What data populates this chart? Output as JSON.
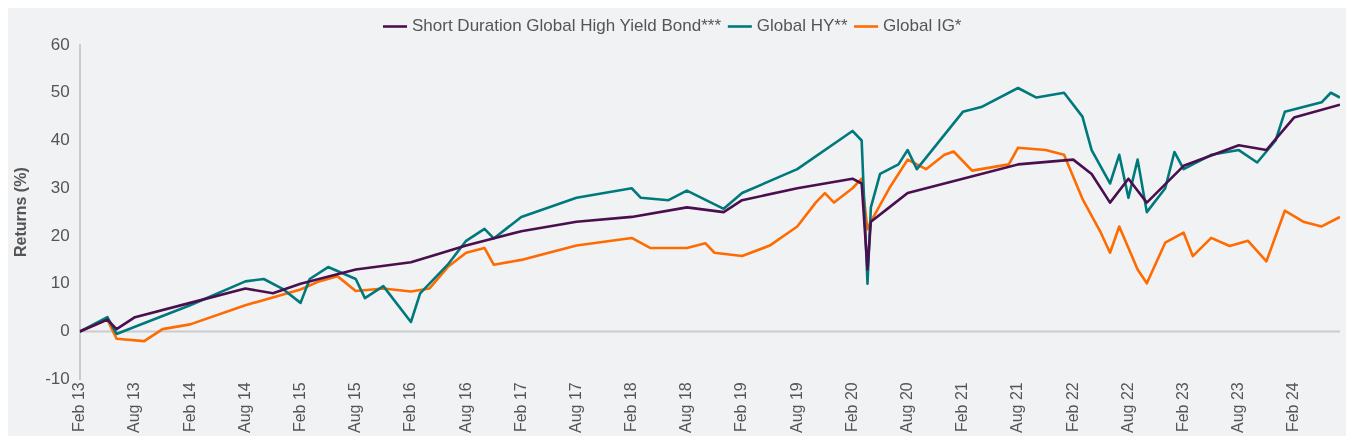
{
  "chart_data": {
    "type": "line",
    "ylabel": "Returns (%)",
    "ylim": [
      -10,
      60
    ],
    "yticks": [
      -10,
      0,
      10,
      20,
      30,
      40,
      50,
      60
    ],
    "xlim": [
      "2013-02",
      "2024-07"
    ],
    "xticks": [
      {
        "value": "2013-02",
        "label": "Feb 13"
      },
      {
        "value": "2013-08",
        "label": "Aug 13"
      },
      {
        "value": "2014-02",
        "label": "Feb 14"
      },
      {
        "value": "2014-08",
        "label": "Aug 14"
      },
      {
        "value": "2015-02",
        "label": "Feb 15"
      },
      {
        "value": "2015-08",
        "label": "Aug 15"
      },
      {
        "value": "2016-02",
        "label": "Feb 16"
      },
      {
        "value": "2016-08",
        "label": "Aug 16"
      },
      {
        "value": "2017-02",
        "label": "Feb 17"
      },
      {
        "value": "2017-08",
        "label": "Aug 17"
      },
      {
        "value": "2018-02",
        "label": "Feb 18"
      },
      {
        "value": "2018-08",
        "label": "Aug 18"
      },
      {
        "value": "2019-02",
        "label": "Feb 19"
      },
      {
        "value": "2019-08",
        "label": "Aug 19"
      },
      {
        "value": "2020-02",
        "label": "Feb 20"
      },
      {
        "value": "2020-08",
        "label": "Aug 20"
      },
      {
        "value": "2021-02",
        "label": "Feb 21"
      },
      {
        "value": "2021-08",
        "label": "Aug 21"
      },
      {
        "value": "2022-02",
        "label": "Feb 22"
      },
      {
        "value": "2022-08",
        "label": "Aug 22"
      },
      {
        "value": "2023-02",
        "label": "Feb 23"
      },
      {
        "value": "2023-08",
        "label": "Aug 23"
      },
      {
        "value": "2024-02",
        "label": "Feb 24"
      }
    ],
    "legend": "top",
    "grid": false,
    "marker": "none",
    "line_style": "solid",
    "ref_lines": [
      {
        "axis": "y",
        "value": 0,
        "color": "#c9cbd0"
      }
    ],
    "series": [
      {
        "name": "Short Duration Global High Yield Bond***",
        "color": "#4b0f4f",
        "x": [
          "2013-02",
          "2013-05",
          "2013-06",
          "2013-08",
          "2014-02",
          "2014-08",
          "2014-11",
          "2015-02",
          "2015-08",
          "2016-02",
          "2016-08",
          "2017-02",
          "2017-08",
          "2018-02",
          "2018-08",
          "2018-12",
          "2019-02",
          "2019-08",
          "2020-02",
          "2020-03-01",
          "2020-03-20",
          "2020-04",
          "2020-06",
          "2020-08",
          "2021-02",
          "2021-08",
          "2022-02",
          "2022-04",
          "2022-06",
          "2022-08",
          "2022-10",
          "2023-02",
          "2023-08",
          "2023-11",
          "2024-02",
          "2024-07"
        ],
        "values": [
          0,
          2.5,
          0.5,
          3,
          6,
          9,
          8,
          10,
          13,
          14.5,
          18,
          21,
          23,
          24,
          26,
          25,
          27.5,
          30,
          32,
          31,
          13,
          23,
          26,
          29,
          32,
          35,
          36,
          33,
          27,
          32,
          27,
          34.7,
          39,
          38,
          44.8,
          47.5
        ]
      },
      {
        "name": "Global HY**",
        "color": "#00797c",
        "x": [
          "2013-02",
          "2013-05",
          "2013-06",
          "2013-08",
          "2014-02",
          "2014-08",
          "2014-10",
          "2014-12",
          "2015-02",
          "2015-03",
          "2015-05",
          "2015-08",
          "2015-09",
          "2015-11",
          "2016-02",
          "2016-03",
          "2016-06",
          "2016-08",
          "2016-10",
          "2016-11",
          "2017-02",
          "2017-08",
          "2018-02",
          "2018-03",
          "2018-06",
          "2018-08",
          "2018-12",
          "2019-02",
          "2019-08",
          "2020-02",
          "2020-03-01",
          "2020-03-20",
          "2020-04",
          "2020-05",
          "2020-07",
          "2020-08",
          "2020-09",
          "2021-02",
          "2021-04",
          "2021-08",
          "2021-10",
          "2022-01",
          "2022-03",
          "2022-04",
          "2022-06",
          "2022-07",
          "2022-08",
          "2022-09",
          "2022-10",
          "2022-12",
          "2023-01",
          "2023-02",
          "2023-05",
          "2023-08",
          "2023-10",
          "2023-12",
          "2024-01",
          "2024-03",
          "2024-05",
          "2024-06",
          "2024-07"
        ],
        "values": [
          0,
          3,
          -0.5,
          1,
          5.5,
          10.5,
          11,
          9,
          6,
          11,
          13.5,
          11,
          7,
          9.5,
          2,
          8,
          14,
          19,
          21.5,
          19.5,
          24,
          28,
          30,
          28,
          27.5,
          29.5,
          25.7,
          29,
          34,
          42,
          40,
          10,
          26,
          33,
          35,
          38,
          34,
          46,
          47,
          51,
          49,
          50,
          45,
          38,
          31,
          37,
          28,
          36,
          25,
          30,
          37.6,
          34,
          37,
          38,
          35.4,
          40,
          46,
          47,
          48,
          50,
          49
        ]
      },
      {
        "name": "Global IG*",
        "color": "#ff6b00",
        "x": [
          "2013-02",
          "2013-05",
          "2013-06",
          "2013-09",
          "2013-11",
          "2014-02",
          "2014-08",
          "2015-02",
          "2015-04",
          "2015-06",
          "2015-08",
          "2015-11",
          "2016-02",
          "2016-04",
          "2016-06",
          "2016-08",
          "2016-10",
          "2016-11",
          "2017-02",
          "2017-08",
          "2018-02",
          "2018-04",
          "2018-08",
          "2018-10",
          "2018-11",
          "2019-02",
          "2019-05",
          "2019-08",
          "2019-10",
          "2019-11",
          "2019-12",
          "2020-02",
          "2020-03-01",
          "2020-03-20",
          "2020-04",
          "2020-06",
          "2020-08",
          "2020-10",
          "2020-12",
          "2021-01",
          "2021-03",
          "2021-07",
          "2021-08",
          "2021-11",
          "2022-01",
          "2022-03",
          "2022-05",
          "2022-06",
          "2022-07",
          "2022-09",
          "2022-10",
          "2022-12",
          "2023-02",
          "2023-03",
          "2023-05",
          "2023-07",
          "2023-09",
          "2023-11",
          "2024-01",
          "2024-03",
          "2024-05",
          "2024-07"
        ],
        "values": [
          0,
          2.5,
          -1.5,
          -2,
          0.5,
          1.5,
          5.5,
          8.8,
          10.5,
          11.6,
          8.5,
          9,
          8.4,
          9,
          13.5,
          16.5,
          17.5,
          14,
          15,
          18,
          19.6,
          17.5,
          17.5,
          18.5,
          16.5,
          15.8,
          18,
          22,
          27,
          29,
          27,
          30,
          32,
          21.4,
          23,
          30,
          36,
          34,
          37,
          37.7,
          33.7,
          35,
          38.5,
          38,
          37,
          27.8,
          20.7,
          16.5,
          22,
          13,
          10.1,
          18.6,
          20.7,
          15.8,
          19.6,
          17.9,
          19,
          14.7,
          25.3,
          23,
          22,
          24
        ]
      }
    ]
  }
}
